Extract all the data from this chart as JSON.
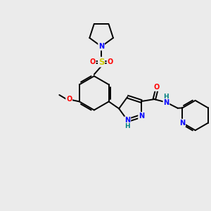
{
  "background_color": "#ebebeb",
  "bond_color": "#000000",
  "atom_colors": {
    "N": "#0000ff",
    "O": "#ff0000",
    "S": "#cccc00",
    "H": "#008080",
    "C": "#000000"
  },
  "figsize": [
    3.0,
    3.0
  ],
  "dpi": 100
}
